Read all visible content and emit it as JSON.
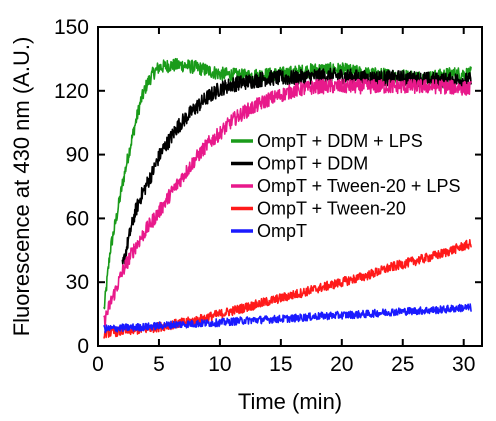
{
  "chart_data": {
    "type": "line",
    "title": "",
    "xlabel": "Time (min)",
    "ylabel": "Fluorescence at 430 nm (A.U.)",
    "xlim": [
      0,
      31.5
    ],
    "ylim": [
      0,
      150
    ],
    "xticks": [
      0,
      5,
      10,
      15,
      20,
      25,
      30
    ],
    "yticks": [
      0,
      30,
      60,
      90,
      120,
      150
    ],
    "grid": false,
    "legend_position": "center-right",
    "series": [
      {
        "name": "OmpT + DDM + LPS",
        "color": "#1a9b1a",
        "x": [
          0.5,
          1,
          1.5,
          2,
          2.5,
          3,
          3.5,
          4,
          4.5,
          5,
          6,
          7,
          8,
          10,
          12,
          15,
          18,
          20,
          22,
          25,
          27,
          29,
          30.6
        ],
        "y": [
          17,
          45,
          60,
          76,
          90,
          103,
          115,
          123,
          128,
          131,
          132,
          132,
          131,
          128,
          127,
          128,
          130,
          130,
          128,
          127,
          126,
          128,
          128
        ]
      },
      {
        "name": "OmpT + DDM",
        "color": "#000000",
        "x": [
          2,
          2.5,
          3,
          3.5,
          4,
          4.5,
          5,
          5.5,
          6,
          6.5,
          7,
          8,
          9,
          10,
          11,
          12,
          14,
          16,
          18,
          20,
          22,
          25,
          28,
          30.6
        ],
        "y": [
          37,
          50,
          62,
          70,
          76,
          82,
          89,
          94,
          98,
          103,
          106,
          112,
          117,
          121,
          123,
          124,
          126,
          126,
          127,
          127,
          126,
          126,
          125,
          125
        ]
      },
      {
        "name": "OmpT + Tween-20 + LPS",
        "color": "#e8198b",
        "x": [
          0.5,
          1,
          1.5,
          2,
          3,
          4,
          5,
          6,
          7,
          8,
          9,
          10,
          11,
          12,
          13,
          14,
          15,
          16,
          17,
          18,
          20,
          22,
          25,
          28,
          30.6
        ],
        "y": [
          11,
          20,
          27,
          35,
          46,
          55,
          63,
          72,
          80,
          88,
          95,
          100,
          106,
          110,
          113,
          116,
          118,
          120,
          121,
          122,
          122,
          122,
          122,
          122,
          121
        ]
      },
      {
        "name": "OmpT + Tween-20",
        "color": "#ff1a1a",
        "x": [
          0.5,
          2,
          4,
          6,
          8,
          10,
          12,
          14,
          16,
          18,
          20,
          22,
          24,
          26,
          28,
          30,
          30.6
        ],
        "y": [
          6,
          7,
          8,
          10,
          12,
          15,
          18,
          21,
          24,
          27,
          30,
          33,
          37,
          40,
          43,
          47,
          48
        ]
      },
      {
        "name": "OmpT",
        "color": "#1a1aff",
        "x": [
          0.5,
          2,
          4,
          6,
          8,
          10,
          12,
          14,
          16,
          18,
          20,
          22,
          24,
          26,
          28,
          30,
          30.6
        ],
        "y": [
          8,
          8.5,
          9,
          10,
          10.5,
          11,
          12,
          12.5,
          13,
          14,
          14.5,
          15,
          16,
          16.5,
          17,
          18,
          18
        ]
      }
    ]
  }
}
